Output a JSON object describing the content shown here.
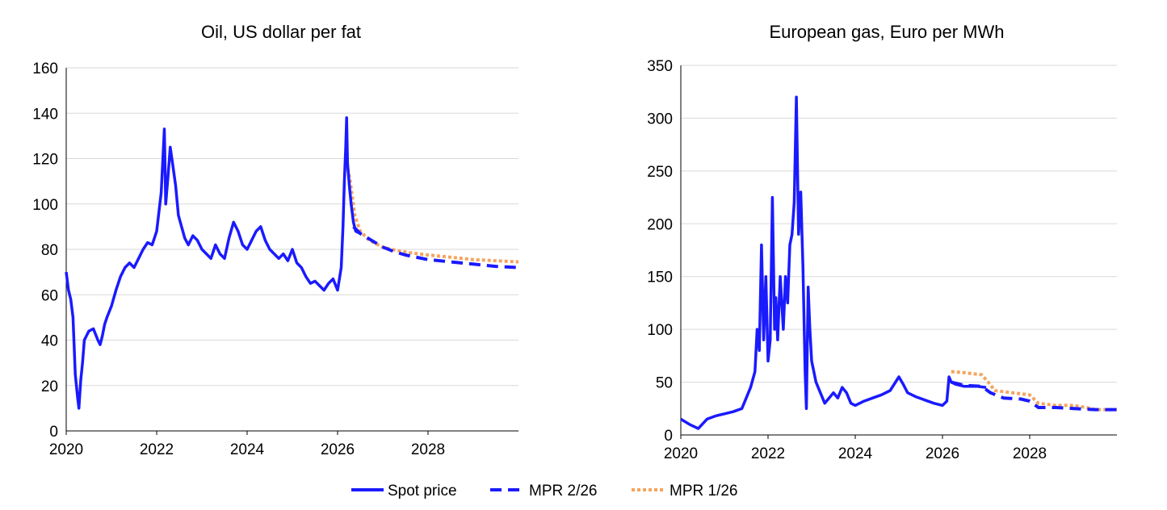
{
  "chart_data": [
    {
      "type": "line",
      "title": "Oil, US dollar per fat",
      "xlabel": "",
      "ylabel": "",
      "xlim": [
        2020,
        2030
      ],
      "ylim": [
        0,
        160
      ],
      "x_ticks": [
        "2020",
        "2022",
        "2024",
        "2026",
        "2028"
      ],
      "y_ticks": [
        "0",
        "20",
        "40",
        "60",
        "80",
        "100",
        "120",
        "140",
        "160"
      ],
      "grid": "horizontal",
      "series": [
        {
          "name": "Spot price",
          "color": "#1a1aff",
          "style": "solid",
          "x": [
            2020.0,
            2020.05,
            2020.1,
            2020.15,
            2020.2,
            2020.25,
            2020.28,
            2020.32,
            2020.36,
            2020.4,
            2020.45,
            2020.5,
            2020.6,
            2020.7,
            2020.75,
            2020.8,
            2020.85,
            2020.9,
            2021.0,
            2021.1,
            2021.2,
            2021.3,
            2021.4,
            2021.5,
            2021.6,
            2021.7,
            2021.8,
            2021.9,
            2022.0,
            2022.1,
            2022.17,
            2022.2,
            2022.25,
            2022.3,
            2022.35,
            2022.42,
            2022.48,
            2022.55,
            2022.62,
            2022.7,
            2022.8,
            2022.9,
            2023.0,
            2023.1,
            2023.2,
            2023.3,
            2023.4,
            2023.5,
            2023.6,
            2023.7,
            2023.8,
            2023.9,
            2024.0,
            2024.1,
            2024.2,
            2024.3,
            2024.4,
            2024.5,
            2024.6,
            2024.7,
            2024.8,
            2024.9,
            2025.0,
            2025.1,
            2025.2,
            2025.3,
            2025.4,
            2025.5,
            2025.6,
            2025.7,
            2025.8,
            2025.9,
            2026.0,
            2026.08,
            2026.12,
            2026.15,
            2026.18,
            2026.2,
            2026.22,
            2026.26,
            2026.3,
            2026.35,
            2026.4,
            2026.5
          ],
          "y": [
            70,
            62,
            58,
            50,
            25,
            15,
            10,
            22,
            30,
            40,
            42,
            44,
            45,
            40,
            38,
            42,
            47,
            50,
            55,
            62,
            68,
            72,
            74,
            72,
            76,
            80,
            83,
            82,
            88,
            105,
            133,
            100,
            112,
            125,
            118,
            108,
            95,
            90,
            85,
            82,
            86,
            84,
            80,
            78,
            76,
            82,
            78,
            76,
            85,
            92,
            88,
            82,
            80,
            84,
            88,
            90,
            84,
            80,
            78,
            76,
            78,
            75,
            80,
            74,
            72,
            68,
            65,
            66,
            64,
            62,
            65,
            67,
            62,
            72,
            90,
            110,
            125,
            138,
            118,
            108,
            100,
            92,
            88,
            87
          ]
        },
        {
          "name": "MPR 2/26",
          "color": "#1a1aff",
          "style": "dashed",
          "x": [
            2026.35,
            2026.5,
            2026.75,
            2027.0,
            2027.25,
            2027.5,
            2028.0,
            2028.5,
            2029.0,
            2029.5,
            2030.0
          ],
          "y": [
            90,
            87,
            84,
            81,
            79,
            77.5,
            75.5,
            74.5,
            73.5,
            72.5,
            72
          ]
        },
        {
          "name": "MPR 1/26",
          "color": "#f4a460",
          "style": "dotted",
          "x": [
            2026.2,
            2026.28,
            2026.38,
            2026.5,
            2026.7,
            2027.0,
            2027.3,
            2027.6,
            2028.0,
            2028.5,
            2029.0,
            2029.5,
            2030.0
          ],
          "y": [
            118,
            110,
            95,
            88,
            84,
            81,
            79.5,
            78.5,
            77.5,
            76.5,
            75.5,
            75,
            74.5
          ]
        }
      ]
    },
    {
      "type": "line",
      "title": "European gas, Euro per MWh",
      "xlabel": "",
      "ylabel": "",
      "xlim": [
        2020,
        2030
      ],
      "ylim": [
        0,
        350
      ],
      "x_ticks": [
        "2020",
        "2022",
        "2024",
        "2026",
        "2028"
      ],
      "y_ticks": [
        "0",
        "50",
        "100",
        "150",
        "200",
        "250",
        "300",
        "350"
      ],
      "grid": "horizontal",
      "series": [
        {
          "name": "Spot price",
          "color": "#1a1aff",
          "style": "solid",
          "x": [
            2020.0,
            2020.2,
            2020.4,
            2020.6,
            2020.8,
            2021.0,
            2021.2,
            2021.4,
            2021.5,
            2021.6,
            2021.7,
            2021.75,
            2021.8,
            2021.85,
            2021.9,
            2021.95,
            2022.0,
            2022.05,
            2022.1,
            2022.15,
            2022.18,
            2022.22,
            2022.28,
            2022.35,
            2022.4,
            2022.45,
            2022.5,
            2022.55,
            2022.6,
            2022.65,
            2022.7,
            2022.75,
            2022.8,
            2022.85,
            2022.88,
            2022.92,
            2022.96,
            2023.0,
            2023.1,
            2023.2,
            2023.3,
            2023.4,
            2023.5,
            2023.6,
            2023.7,
            2023.8,
            2023.9,
            2024.0,
            2024.2,
            2024.4,
            2024.6,
            2024.8,
            2025.0,
            2025.1,
            2025.2,
            2025.4,
            2025.6,
            2025.8,
            2026.0,
            2026.1,
            2026.15,
            2026.2,
            2026.3,
            2026.5,
            2026.8,
            2027.0
          ],
          "y": [
            15,
            10,
            6,
            15,
            18,
            20,
            22,
            25,
            35,
            45,
            60,
            100,
            80,
            180,
            90,
            150,
            70,
            90,
            225,
            100,
            130,
            90,
            150,
            100,
            150,
            125,
            180,
            190,
            220,
            320,
            190,
            230,
            160,
            60,
            25,
            140,
            100,
            70,
            50,
            40,
            30,
            35,
            40,
            35,
            45,
            40,
            30,
            28,
            32,
            35,
            38,
            42,
            55,
            48,
            40,
            36,
            33,
            30,
            28,
            32,
            55,
            50,
            48,
            46,
            46,
            45
          ]
        },
        {
          "name": "MPR 2/26",
          "color": "#1a1aff",
          "style": "dashed",
          "x": [
            2026.2,
            2026.5,
            2026.9,
            2027.1,
            2027.4,
            2027.8,
            2028.0,
            2028.2,
            2028.6,
            2029.0,
            2029.5,
            2030.0
          ],
          "y": [
            50,
            47,
            46,
            40,
            35,
            34,
            32,
            26,
            26,
            25,
            24,
            24
          ]
        },
        {
          "name": "MPR 1/26",
          "color": "#f4a460",
          "style": "dotted",
          "x": [
            2026.2,
            2026.5,
            2026.9,
            2027.05,
            2027.2,
            2027.6,
            2028.0,
            2028.2,
            2028.6,
            2029.0,
            2029.3,
            2029.5,
            2030.0
          ],
          "y": [
            60,
            59,
            57,
            50,
            42,
            40,
            38,
            30,
            28,
            28,
            26,
            24,
            24
          ]
        }
      ]
    }
  ],
  "legend": {
    "placement": "bottom-center",
    "items": [
      {
        "label": "Spot price",
        "color": "#1a1aff",
        "style": "solid"
      },
      {
        "label": "MPR 2/26",
        "color": "#1a1aff",
        "style": "dashed"
      },
      {
        "label": "MPR 1/26",
        "color": "#f4a460",
        "style": "dotted"
      }
    ]
  }
}
